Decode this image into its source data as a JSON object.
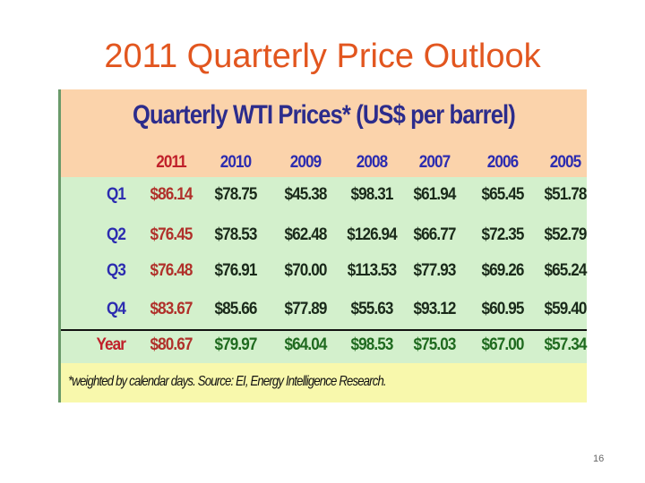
{
  "header": {
    "title": "2011 Quarterly Price Outlook"
  },
  "table": {
    "title": "Quarterly WTI Prices* (US$ per barrel)",
    "columns": [
      "2011",
      "2010",
      "2009",
      "2008",
      "2007",
      "2006",
      "2005"
    ],
    "rows": [
      [
        "Q1",
        "$86.14",
        "$78.75",
        "$45.38",
        "$98.31",
        "$61.94",
        "$65.45",
        "$51.78"
      ],
      [
        "Q2",
        "$76.45",
        "$78.53",
        "$62.48",
        "$126.94",
        "$66.77",
        "$72.35",
        "$52.79"
      ],
      [
        "Q3",
        "$76.48",
        "$76.91",
        "$70.00",
        "$113.53",
        "$77.93",
        "$69.26",
        "$65.24"
      ],
      [
        "Q4",
        "$83.67",
        "$85.66",
        "$77.89",
        "$55.63",
        "$93.12",
        "$60.95",
        "$59.40"
      ],
      [
        "Year",
        "$80.67",
        "$79.97",
        "$64.04",
        "$98.53",
        "$75.03",
        "$67.00",
        "$57.34"
      ]
    ],
    "footnote": "*weighted by calendar days. Source: EI, Energy Intelligence Research."
  },
  "page_number": "16"
}
